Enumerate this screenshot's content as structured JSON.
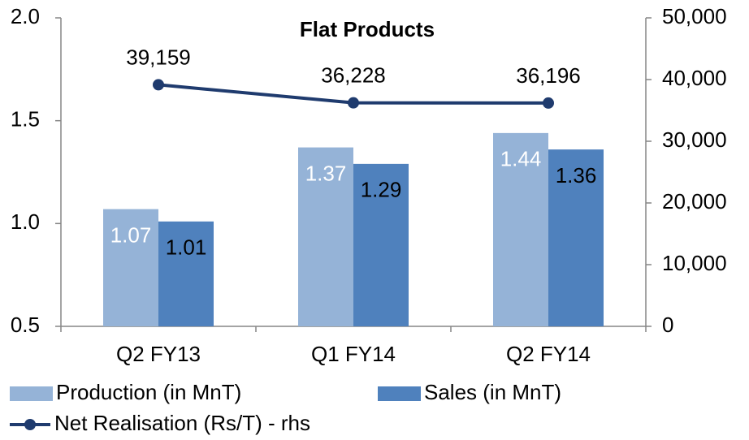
{
  "chart_data": {
    "type": "bar",
    "title": "Flat Products",
    "categories": [
      "Q2 FY13",
      "Q1 FY14",
      "Q2 FY14"
    ],
    "series": [
      {
        "name": "Production (in MnT)",
        "color": "#95b3d7",
        "values": [
          1.07,
          1.37,
          1.44
        ]
      },
      {
        "name": "Sales (in MnT)",
        "color": "#4f81bd",
        "values": [
          1.01,
          1.29,
          1.36
        ]
      },
      {
        "name": "Net Realisation (Rs/T) - rhs",
        "color": "#1f3b6e",
        "type": "line",
        "axis": "y2",
        "values": [
          39159,
          36228,
          36196
        ],
        "value_labels": [
          "39,159",
          "36,228",
          "36,196"
        ]
      }
    ],
    "ylim": [
      0.5,
      2.0
    ],
    "yticks": [
      {
        "value": 0.5,
        "label": "0.5"
      },
      {
        "value": 1.0,
        "label": "1.0"
      },
      {
        "value": 1.5,
        "label": "1.5"
      },
      {
        "value": 2.0,
        "label": "2.0"
      }
    ],
    "y2lim": [
      0,
      50000
    ],
    "y2ticks": [
      0,
      {
        "value": 10000,
        "label": "10,000"
      },
      {
        "value": 20000,
        "label": "20,000"
      },
      {
        "value": 30000,
        "label": "30,000"
      },
      {
        "value": 40000,
        "label": "40,000"
      },
      {
        "value": 50000,
        "label": "50,000"
      }
    ],
    "legend": "bottom"
  }
}
